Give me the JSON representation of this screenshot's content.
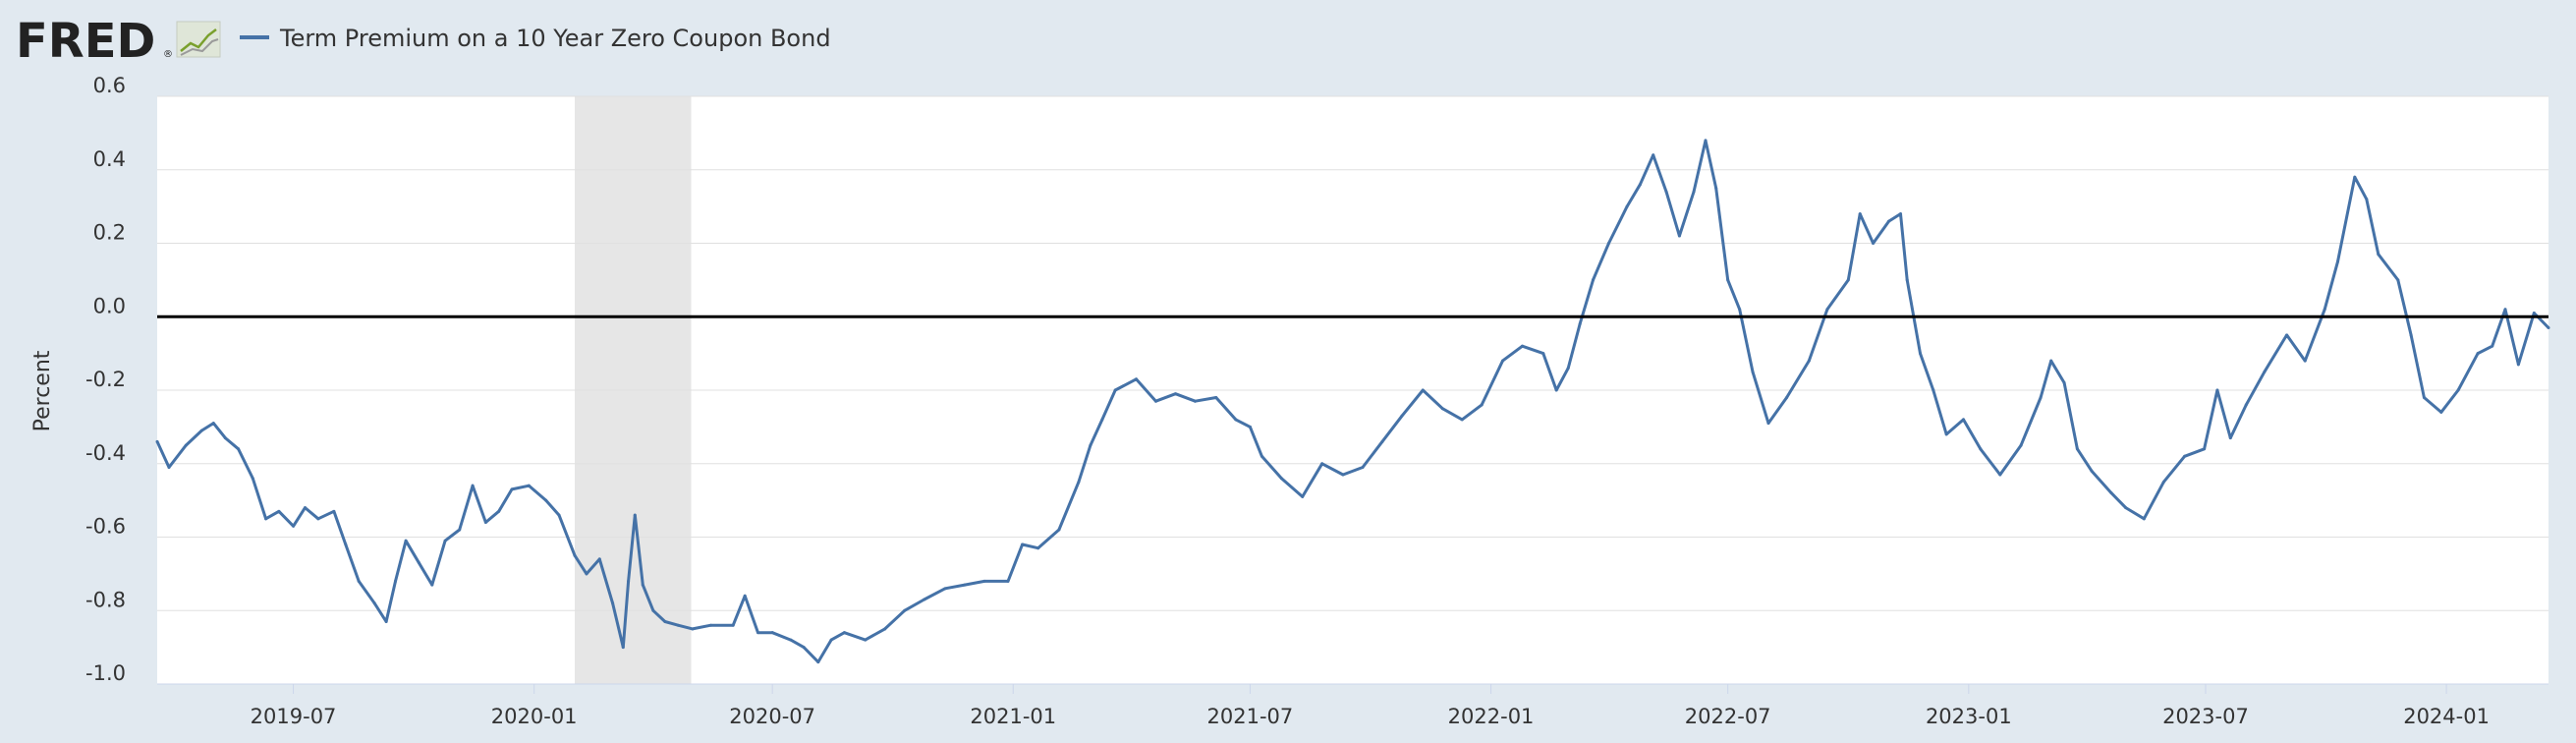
{
  "header": {
    "logo_text": "FRED",
    "logo_registered": "®",
    "logo_icon": "line-chart-icon",
    "legend_label": "Term Premium on a 10 Year Zero Coupon Bond"
  },
  "colors": {
    "background": "#e1e9f0",
    "plot_background": "#ffffff",
    "series": "#4572a7",
    "zero_line": "#000000",
    "grid": "#e0e0e0",
    "recession": "#e6e6e6"
  },
  "chart_data": {
    "type": "line",
    "title": "",
    "ylabel": "Percent",
    "xlabel": "",
    "ylim": [
      -1.0,
      0.6
    ],
    "xlim": [
      "2019-03-19",
      "2024-03-19"
    ],
    "y_ticks": [
      "0.6",
      "0.4",
      "0.2",
      "0.0",
      "-0.2",
      "-0.4",
      "-0.6",
      "-0.8",
      "-1.0"
    ],
    "y_tick_values": [
      0.6,
      0.4,
      0.2,
      0.0,
      -0.2,
      -0.4,
      -0.6,
      -0.8,
      -1.0
    ],
    "x_ticks": [
      "2019-07",
      "2020-01",
      "2020-07",
      "2021-01",
      "2021-07",
      "2022-01",
      "2022-07",
      "2023-01",
      "2023-07",
      "2024-01"
    ],
    "x_tick_dates": [
      "2019-07-01",
      "2020-01-01",
      "2020-07-01",
      "2021-01-01",
      "2021-07-01",
      "2022-01-01",
      "2022-07-01",
      "2023-01-01",
      "2023-07-01",
      "2024-01-01"
    ],
    "grid": true,
    "zero_line": true,
    "recession_shading": {
      "start": "2020-02-01",
      "end": "2020-04-30"
    },
    "series": [
      {
        "name": "Term Premium on a 10 Year Zero Coupon Bond",
        "points": [
          [
            "2019-03-19",
            -0.34
          ],
          [
            "2019-03-28",
            -0.41
          ],
          [
            "2019-04-10",
            -0.35
          ],
          [
            "2019-04-22",
            -0.31
          ],
          [
            "2019-05-01",
            -0.29
          ],
          [
            "2019-05-10",
            -0.33
          ],
          [
            "2019-05-20",
            -0.36
          ],
          [
            "2019-05-31",
            -0.44
          ],
          [
            "2019-06-10",
            -0.55
          ],
          [
            "2019-06-20",
            -0.53
          ],
          [
            "2019-07-01",
            -0.57
          ],
          [
            "2019-07-10",
            -0.52
          ],
          [
            "2019-07-20",
            -0.55
          ],
          [
            "2019-08-01",
            -0.53
          ],
          [
            "2019-08-10",
            -0.62
          ],
          [
            "2019-08-20",
            -0.72
          ],
          [
            "2019-09-01",
            -0.78
          ],
          [
            "2019-09-10",
            -0.83
          ],
          [
            "2019-09-17",
            -0.72
          ],
          [
            "2019-09-25",
            -0.61
          ],
          [
            "2019-10-05",
            -0.67
          ],
          [
            "2019-10-15",
            -0.73
          ],
          [
            "2019-10-25",
            -0.61
          ],
          [
            "2019-11-05",
            -0.58
          ],
          [
            "2019-11-15",
            -0.46
          ],
          [
            "2019-11-25",
            -0.56
          ],
          [
            "2019-12-05",
            -0.53
          ],
          [
            "2019-12-15",
            -0.47
          ],
          [
            "2019-12-28",
            -0.46
          ],
          [
            "2020-01-10",
            -0.5
          ],
          [
            "2020-01-20",
            -0.54
          ],
          [
            "2020-02-01",
            -0.65
          ],
          [
            "2020-02-10",
            -0.7
          ],
          [
            "2020-02-20",
            -0.66
          ],
          [
            "2020-03-01",
            -0.78
          ],
          [
            "2020-03-09",
            -0.9
          ],
          [
            "2020-03-13",
            -0.72
          ],
          [
            "2020-03-18",
            -0.54
          ],
          [
            "2020-03-24",
            -0.73
          ],
          [
            "2020-04-01",
            -0.8
          ],
          [
            "2020-04-10",
            -0.83
          ],
          [
            "2020-04-20",
            -0.84
          ],
          [
            "2020-05-01",
            -0.85
          ],
          [
            "2020-05-15",
            -0.84
          ],
          [
            "2020-06-01",
            -0.84
          ],
          [
            "2020-06-10",
            -0.76
          ],
          [
            "2020-06-20",
            -0.86
          ],
          [
            "2020-07-01",
            -0.86
          ],
          [
            "2020-07-15",
            -0.88
          ],
          [
            "2020-07-25",
            -0.9
          ],
          [
            "2020-08-05",
            -0.94
          ],
          [
            "2020-08-15",
            -0.88
          ],
          [
            "2020-08-25",
            -0.86
          ],
          [
            "2020-09-10",
            -0.88
          ],
          [
            "2020-09-25",
            -0.85
          ],
          [
            "2020-10-10",
            -0.8
          ],
          [
            "2020-10-25",
            -0.77
          ],
          [
            "2020-11-10",
            -0.74
          ],
          [
            "2020-11-25",
            -0.73
          ],
          [
            "2020-12-10",
            -0.72
          ],
          [
            "2020-12-28",
            -0.72
          ],
          [
            "2021-01-08",
            -0.62
          ],
          [
            "2021-01-20",
            -0.63
          ],
          [
            "2021-02-05",
            -0.58
          ],
          [
            "2021-02-20",
            -0.45
          ],
          [
            "2021-03-01",
            -0.35
          ],
          [
            "2021-03-10",
            -0.28
          ],
          [
            "2021-03-20",
            -0.2
          ],
          [
            "2021-04-05",
            -0.17
          ],
          [
            "2021-04-20",
            -0.23
          ],
          [
            "2021-05-05",
            -0.21
          ],
          [
            "2021-05-20",
            -0.23
          ],
          [
            "2021-06-05",
            -0.22
          ],
          [
            "2021-06-20",
            -0.28
          ],
          [
            "2021-07-01",
            -0.3
          ],
          [
            "2021-07-10",
            -0.38
          ],
          [
            "2021-07-25",
            -0.44
          ],
          [
            "2021-08-10",
            -0.49
          ],
          [
            "2021-08-25",
            -0.4
          ],
          [
            "2021-09-10",
            -0.43
          ],
          [
            "2021-09-25",
            -0.41
          ],
          [
            "2021-10-10",
            -0.34
          ],
          [
            "2021-10-25",
            -0.27
          ],
          [
            "2021-11-10",
            -0.2
          ],
          [
            "2021-11-25",
            -0.25
          ],
          [
            "2021-12-10",
            -0.28
          ],
          [
            "2021-12-25",
            -0.24
          ],
          [
            "2022-01-10",
            -0.12
          ],
          [
            "2022-01-25",
            -0.08
          ],
          [
            "2022-02-10",
            -0.1
          ],
          [
            "2022-02-20",
            -0.2
          ],
          [
            "2022-03-01",
            -0.14
          ],
          [
            "2022-03-10",
            -0.02
          ],
          [
            "2022-03-20",
            0.1
          ],
          [
            "2022-04-01",
            0.2
          ],
          [
            "2022-04-15",
            0.3
          ],
          [
            "2022-04-25",
            0.36
          ],
          [
            "2022-05-05",
            0.44
          ],
          [
            "2022-05-15",
            0.34
          ],
          [
            "2022-05-25",
            0.22
          ],
          [
            "2022-06-05",
            0.34
          ],
          [
            "2022-06-14",
            0.48
          ],
          [
            "2022-06-22",
            0.35
          ],
          [
            "2022-07-01",
            0.1
          ],
          [
            "2022-07-10",
            0.02
          ],
          [
            "2022-07-20",
            -0.15
          ],
          [
            "2022-08-01",
            -0.29
          ],
          [
            "2022-08-15",
            -0.22
          ],
          [
            "2022-09-01",
            -0.12
          ],
          [
            "2022-09-15",
            0.02
          ],
          [
            "2022-10-01",
            0.1
          ],
          [
            "2022-10-10",
            0.28
          ],
          [
            "2022-10-20",
            0.2
          ],
          [
            "2022-11-01",
            0.26
          ],
          [
            "2022-11-10",
            0.28
          ],
          [
            "2022-11-15",
            0.1
          ],
          [
            "2022-11-25",
            -0.1
          ],
          [
            "2022-12-05",
            -0.2
          ],
          [
            "2022-12-15",
            -0.32
          ],
          [
            "2022-12-28",
            -0.28
          ],
          [
            "2023-01-10",
            -0.36
          ],
          [
            "2023-01-25",
            -0.43
          ],
          [
            "2023-02-10",
            -0.35
          ],
          [
            "2023-02-25",
            -0.22
          ],
          [
            "2023-03-05",
            -0.12
          ],
          [
            "2023-03-15",
            -0.18
          ],
          [
            "2023-03-25",
            -0.36
          ],
          [
            "2023-04-05",
            -0.42
          ],
          [
            "2023-04-20",
            -0.48
          ],
          [
            "2023-05-01",
            -0.52
          ],
          [
            "2023-05-15",
            -0.55
          ],
          [
            "2023-05-30",
            -0.45
          ],
          [
            "2023-06-15",
            -0.38
          ],
          [
            "2023-06-30",
            -0.36
          ],
          [
            "2023-07-10",
            -0.2
          ],
          [
            "2023-07-20",
            -0.33
          ],
          [
            "2023-08-01",
            -0.24
          ],
          [
            "2023-08-15",
            -0.15
          ],
          [
            "2023-09-01",
            -0.05
          ],
          [
            "2023-09-15",
            -0.12
          ],
          [
            "2023-09-30",
            0.02
          ],
          [
            "2023-10-10",
            0.15
          ],
          [
            "2023-10-23",
            0.38
          ],
          [
            "2023-11-01",
            0.32
          ],
          [
            "2023-11-10",
            0.17
          ],
          [
            "2023-11-25",
            0.1
          ],
          [
            "2023-12-05",
            -0.05
          ],
          [
            "2023-12-15",
            -0.22
          ],
          [
            "2023-12-28",
            -0.26
          ],
          [
            "2024-01-10",
            -0.2
          ],
          [
            "2024-01-25",
            -0.1
          ],
          [
            "2024-02-05",
            -0.08
          ],
          [
            "2024-02-15",
            0.02
          ],
          [
            "2024-02-25",
            -0.13
          ],
          [
            "2024-03-08",
            0.01
          ],
          [
            "2024-03-19",
            -0.03
          ]
        ]
      }
    ]
  }
}
